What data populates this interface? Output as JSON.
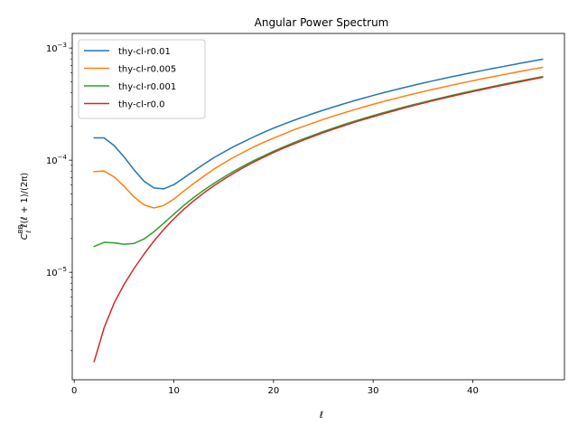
{
  "chart_data": {
    "type": "line",
    "title": "Angular Power Spectrum",
    "xlabel": "ℓ",
    "ylabel": "C_ℓ^BB ℓ(ℓ+1)/(2π)",
    "ylabel_parts": {
      "main": "C",
      "sup": "BB",
      "sub": "ℓ",
      "rest": " ℓ(ℓ + 1)/(2π)"
    },
    "xlim": [
      -0.2,
      49.2
    ],
    "ylim": [
      1.1e-06,
      0.00135
    ],
    "yscale": "log",
    "xticks": [
      0,
      10,
      20,
      30,
      40
    ],
    "xtick_labels": [
      "0",
      "10",
      "20",
      "30",
      "40"
    ],
    "yticks": [
      1e-05,
      0.0001,
      0.001
    ],
    "ytick_labels": [
      {
        "base": "10",
        "exp": "−5"
      },
      {
        "base": "10",
        "exp": "−4"
      },
      {
        "base": "10",
        "exp": "−3"
      }
    ],
    "legend_position": "top-left",
    "x": [
      2,
      3,
      4,
      5,
      6,
      7,
      8,
      9,
      10,
      11,
      12,
      13,
      14,
      15,
      16,
      17,
      18,
      19,
      20,
      21,
      22,
      23,
      24,
      25,
      26,
      27,
      28,
      29,
      30,
      31,
      32,
      33,
      34,
      35,
      36,
      37,
      38,
      39,
      40,
      41,
      42,
      43,
      44,
      45,
      46,
      47
    ],
    "series": [
      {
        "name": "thy-cl-r0.01",
        "color": "#1f77b4",
        "values": [
          0.000158,
          0.000158,
          0.000135,
          0.000107,
          8.2e-05,
          6.5e-05,
          5.65e-05,
          5.55e-05,
          6.05e-05,
          6.95e-05,
          8e-05,
          9.2e-05,
          0.000105,
          0.000118,
          0.000132,
          0.000146,
          0.000161,
          0.000177,
          0.000193,
          0.000209,
          0.000226,
          0.000243,
          0.000261,
          0.000279,
          0.000298,
          0.000317,
          0.000337,
          0.000357,
          0.000378,
          0.000399,
          0.00042,
          0.000442,
          0.000464,
          0.000487,
          0.00051,
          0.000533,
          0.000557,
          0.000581,
          0.000606,
          0.000631,
          0.000657,
          0.000683,
          0.00071,
          0.000738,
          0.000766,
          0.000795
        ]
      },
      {
        "name": "thy-cl-r0.005",
        "color": "#ff7f0e",
        "values": [
          7.9e-05,
          8e-05,
          7.1e-05,
          5.85e-05,
          4.7e-05,
          4e-05,
          3.75e-05,
          3.95e-05,
          4.5e-05,
          5.3e-05,
          6.2e-05,
          7.2e-05,
          8.3e-05,
          9.4e-05,
          0.000106,
          0.000118,
          0.000131,
          0.000144,
          0.000157,
          0.000171,
          0.000186,
          0.0002,
          0.000215,
          0.000231,
          0.000247,
          0.000263,
          0.00028,
          0.000297,
          0.000315,
          0.000333,
          0.000351,
          0.00037,
          0.000389,
          0.000408,
          0.000428,
          0.000448,
          0.000469,
          0.00049,
          0.000511,
          0.000533,
          0.000555,
          0.000578,
          0.000601,
          0.000625,
          0.000649,
          0.000673
        ]
      },
      {
        "name": "thy-cl-r0.001",
        "color": "#2ca02c",
        "values": [
          1.7e-05,
          1.85e-05,
          1.83e-05,
          1.78e-05,
          1.81e-05,
          1.98e-05,
          2.3e-05,
          2.75e-05,
          3.3e-05,
          3.95e-05,
          4.65e-05,
          5.4e-05,
          6.2e-05,
          7.05e-05,
          7.95e-05,
          8.9e-05,
          9.9e-05,
          0.000109,
          0.00012,
          0.000131,
          0.000143,
          0.000155,
          0.000167,
          0.00018,
          0.000193,
          0.000207,
          0.000221,
          0.000235,
          0.00025,
          0.000265,
          0.00028,
          0.000296,
          0.000312,
          0.000328,
          0.000345,
          0.000362,
          0.00038,
          0.000398,
          0.000416,
          0.000435,
          0.000454,
          0.000474,
          0.000494,
          0.000514,
          0.000535,
          0.000556
        ]
      },
      {
        "name": "thy-cl-r0.0",
        "color": "#d62728",
        "values": [
          1.6e-06,
          3.2e-06,
          5.3e-06,
          7.8e-06,
          1.08e-05,
          1.45e-05,
          1.9e-05,
          2.42e-05,
          3e-05,
          3.65e-05,
          4.35e-05,
          5.1e-05,
          5.9e-05,
          6.75e-05,
          7.65e-05,
          8.6e-05,
          9.6e-05,
          0.000106,
          0.000117,
          0.000128,
          0.000139,
          0.000151,
          0.000163,
          0.000176,
          0.000189,
          0.000202,
          0.000216,
          0.00023,
          0.000244,
          0.000259,
          0.000274,
          0.00029,
          0.000306,
          0.000322,
          0.000339,
          0.000356,
          0.000373,
          0.000391,
          0.000409,
          0.000428,
          0.000447,
          0.000466,
          0.000486,
          0.000506,
          0.000527,
          0.000548
        ]
      }
    ]
  }
}
